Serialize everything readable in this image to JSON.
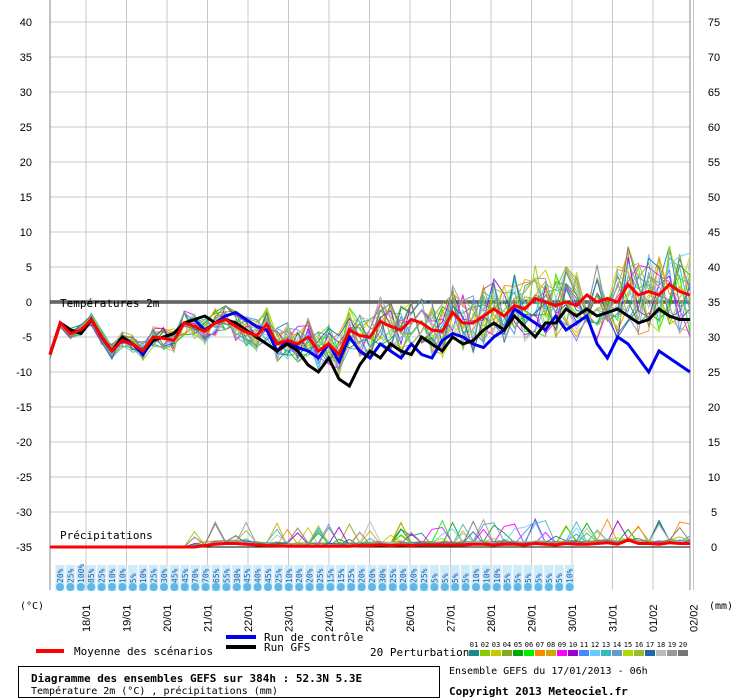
{
  "chart_data": {
    "type": "line",
    "location": "52.3N 5.3E",
    "left_axis": {
      "unit": "(°C)",
      "ticks": [
        40,
        35,
        30,
        25,
        20,
        15,
        10,
        5,
        0,
        -5,
        -10,
        -15,
        -20,
        -25,
        -30,
        -35
      ],
      "range": [
        -35,
        40
      ]
    },
    "right_axis": {
      "unit": "(mm)",
      "ticks": [
        75,
        70,
        65,
        60,
        55,
        50,
        45,
        40,
        35,
        30,
        25,
        20,
        15,
        10,
        5,
        0
      ]
    },
    "date_labels": [
      "18/01",
      "19/01",
      "20/01",
      "21/01",
      "22/01",
      "23/01",
      "24/01",
      "25/01",
      "26/01",
      "27/01",
      "28/01",
      "29/01",
      "30/01",
      "31/01",
      "01/02",
      "02/02"
    ],
    "section_labels": {
      "temperature": "Températures 2m",
      "precipitation": "Précipitations"
    },
    "series": [
      {
        "name": "Moyenne des scénarios",
        "color": "#ff0000",
        "values": [
          -7.5,
          -3,
          -4.5,
          -4,
          -2.5,
          -5,
          -7,
          -5.5,
          -6,
          -7,
          -5,
          -5.2,
          -5.5,
          -3,
          -3.5,
          -4.2,
          -3,
          -2.5,
          -3.5,
          -4.3,
          -4.8,
          -3.2,
          -6,
          -5.5,
          -6,
          -5,
          -7,
          -6,
          -7.5,
          -4,
          -4.8,
          -5,
          -2.8,
          -3.5,
          -4,
          -2.5,
          -3,
          -4,
          -4.2,
          -1.5,
          -3,
          -3,
          -2,
          -1,
          -2,
          -0.5,
          -1,
          0.5,
          0,
          -0.5,
          0,
          -0.5,
          1,
          0,
          0.5,
          0,
          2.5,
          1,
          1.5,
          1,
          2.5,
          1.5,
          1
        ]
      },
      {
        "name": "Run de contrôle",
        "color": "#0000ee",
        "values": [
          -7.5,
          -3,
          -4,
          -4.5,
          -2.5,
          -5,
          -7,
          -5.5,
          -6,
          -7.5,
          -5.5,
          -5,
          -4.5,
          -3,
          -2.5,
          -4,
          -3,
          -2,
          -1.5,
          -2.5,
          -3.5,
          -4,
          -7,
          -5.5,
          -6.5,
          -7,
          -8,
          -6,
          -8.5,
          -5,
          -7,
          -8,
          -6,
          -7,
          -8,
          -6,
          -7.5,
          -8,
          -5.5,
          -4.5,
          -5,
          -6,
          -6.5,
          -5,
          -4,
          -1,
          -2,
          -3,
          -4,
          -2,
          -4,
          -3,
          -2,
          -6,
          -8,
          -5,
          -6,
          -8,
          -10,
          -7,
          -8,
          -9,
          -10
        ]
      },
      {
        "name": "Run GFS",
        "color": "#000000",
        "values": [
          -7.5,
          -3,
          -4,
          -4.5,
          -2.5,
          -5,
          -7,
          -5,
          -6,
          -7,
          -5.5,
          -5,
          -4.5,
          -3,
          -2.5,
          -2,
          -3,
          -2.5,
          -3,
          -4,
          -5,
          -6,
          -7,
          -6,
          -7,
          -9,
          -10,
          -8,
          -11,
          -12,
          -9,
          -7,
          -8,
          -6,
          -7,
          -7.5,
          -5,
          -6,
          -7,
          -5,
          -6,
          -5.5,
          -4,
          -3,
          -4,
          -2,
          -3.5,
          -5,
          -3,
          -3,
          -1,
          -2,
          -1,
          -2,
          -1.5,
          -1,
          -2,
          -3,
          -2.5,
          -1,
          -2,
          -2.5,
          -2.5
        ]
      },
      {
        "name": "Moyenne des scénarios (précipitations)",
        "color": "#ff0000",
        "values": [
          0,
          0,
          0,
          0,
          0,
          0,
          0,
          0,
          0,
          0,
          0,
          0,
          0,
          0,
          0,
          0.2,
          0.4,
          0.5,
          0.5,
          0.4,
          0.3,
          0.2,
          0.2,
          0.1,
          0.1,
          0.1,
          0.1,
          0.1,
          0.1,
          0.1,
          0.2,
          0.2,
          0.3,
          0.2,
          0.3,
          0.2,
          0.3,
          0.3,
          0.3,
          0.3,
          0.3,
          0.4,
          0.4,
          0.3,
          0.4,
          0.4,
          0.3,
          0.5,
          0.4,
          0.3,
          0.5,
          0.4,
          0.4,
          0.5,
          0.6,
          0.4,
          1,
          0.5,
          0.5,
          0.4,
          0.6,
          0.5,
          0.5
        ]
      }
    ],
    "perturbation_count": 20,
    "legend": {
      "mean": "Moyenne des scénarios",
      "control": "Run de contrôle",
      "gfs": "Run GFS",
      "perturbations": "20 Perturbations",
      "perturbation_ids": [
        "01",
        "02",
        "03",
        "04",
        "05",
        "06",
        "07",
        "08",
        "09",
        "10",
        "11",
        "12",
        "13",
        "14",
        "15",
        "16",
        "17",
        "18",
        "19",
        "20"
      ],
      "perturbation_colors": [
        "#1a8a8a",
        "#88cc00",
        "#c8c800",
        "#88aa22",
        "#00aa00",
        "#00ee00",
        "#ff8800",
        "#ccaa00",
        "#ff00ff",
        "#9900cc",
        "#4488ff",
        "#66ccff",
        "#33bbbb",
        "#6699cc",
        "#aadd00",
        "#99bb33",
        "#2266aa",
        "#bbbbbb",
        "#999999",
        "#777777"
      ]
    },
    "precip_probabilities": [
      "20%",
      "25%",
      "100%",
      "85%",
      "25%",
      "10%",
      "10%",
      "5%",
      "10%",
      "25%",
      "30%",
      "45%",
      "45%",
      "70%",
      "70%",
      "65%",
      "55%",
      "30%",
      "45%",
      "40%",
      "45%",
      "25%",
      "10%",
      "20%",
      "20%",
      "25%",
      "15%",
      "15%",
      "25%",
      "20%",
      "20%",
      "30%",
      "25%",
      "20%",
      "20%",
      "25%",
      "5%",
      "5%",
      "5%",
      "5%",
      "10%",
      "10%",
      "10%",
      "5%",
      "5%",
      "5%",
      "5%",
      "5%",
      "5%",
      "10%"
    ]
  },
  "footer": {
    "title": "Diagramme des ensembles GEFS sur 384h : 52.3N 5.3E",
    "subtitle": "Température 2m (°C) , précipitations (mm)",
    "run_info": "Ensemble GEFS du 17/01/2013 - 06h",
    "copyright": "Copyright 2013 Meteociel.fr"
  }
}
